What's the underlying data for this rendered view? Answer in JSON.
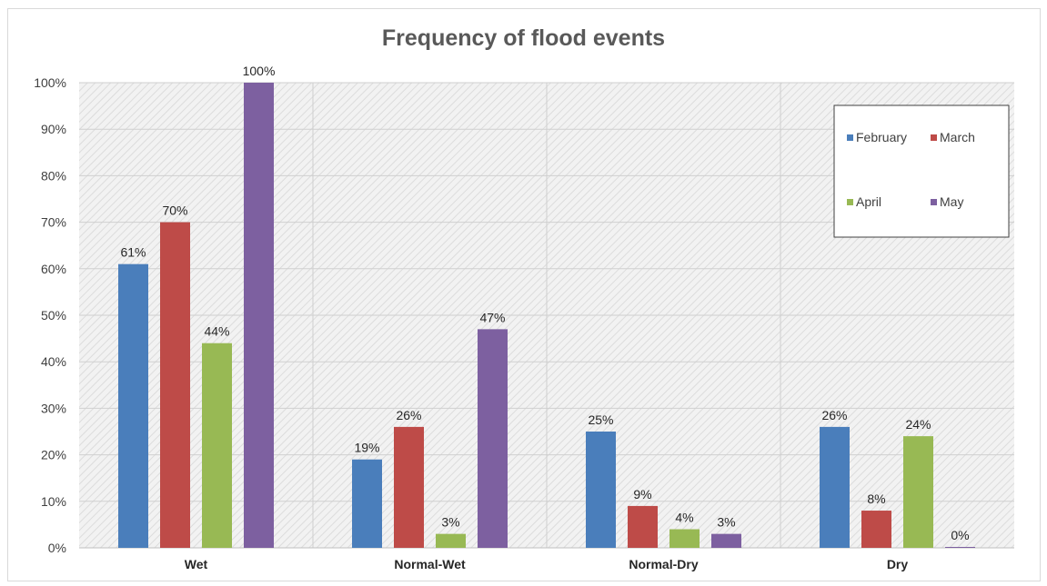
{
  "chart_data": {
    "type": "bar",
    "title": "Frequency of flood events",
    "xlabel": "",
    "ylabel": "",
    "categories": [
      "Wet",
      "Normal-Wet",
      "Normal-Dry",
      "Dry"
    ],
    "series": [
      {
        "name": "February",
        "color": "#4a7ebb",
        "values": [
          61,
          19,
          25,
          26
        ],
        "labels": [
          "61%",
          "19%",
          "25%",
          "26%"
        ]
      },
      {
        "name": "March",
        "color": "#be4b48",
        "values": [
          70,
          26,
          9,
          8
        ],
        "labels": [
          "70%",
          "26%",
          "9%",
          "8%"
        ]
      },
      {
        "name": "April",
        "color": "#98b954",
        "values": [
          44,
          3,
          4,
          24
        ],
        "labels": [
          "44%",
          "3%",
          "4%",
          "24%"
        ]
      },
      {
        "name": "May",
        "color": "#7d60a0",
        "values": [
          100,
          47,
          3,
          0
        ],
        "labels": [
          "100%",
          "47%",
          "3%",
          "0%"
        ]
      }
    ],
    "ylim": [
      0,
      100
    ],
    "yticks": [
      0,
      10,
      20,
      30,
      40,
      50,
      60,
      70,
      80,
      90,
      100
    ],
    "ytick_labels": [
      "0%",
      "10%",
      "20%",
      "30%",
      "40%",
      "50%",
      "60%",
      "70%",
      "80%",
      "90%",
      "100%"
    ],
    "grid": true,
    "legend_position": "top-right"
  }
}
